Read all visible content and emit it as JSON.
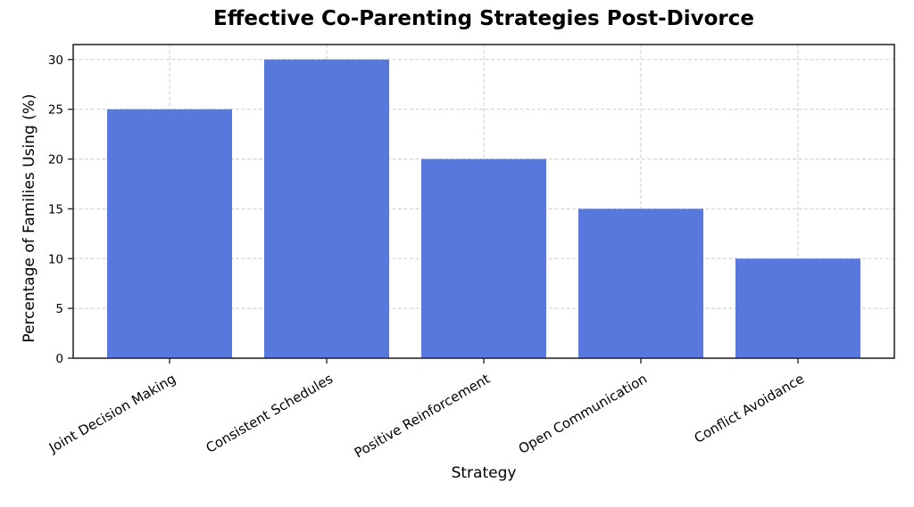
{
  "figure": {
    "background": "#ffffff",
    "text_color": "#000000",
    "spine_color": "#2b2b2b"
  },
  "chart_data": {
    "type": "bar",
    "title": "Effective Co-Parenting Strategies Post-Divorce",
    "xlabel": "Strategy",
    "ylabel": "Percentage of Families Using (%)",
    "categories": [
      "Joint Decision Making",
      "Consistent Schedules",
      "Positive Reinforcement",
      "Open Communication",
      "Conflict Avoidance"
    ],
    "values": [
      25,
      30,
      20,
      15,
      10
    ],
    "yticks": [
      0,
      5,
      10,
      15,
      20,
      25,
      30
    ],
    "ylim": [
      0,
      31.5
    ],
    "bar_color": "#5878de",
    "grid": true,
    "grid_color": "#cdcdcd",
    "grid_style": "dashed",
    "legend_position": "none",
    "x_tick_rotation_deg": 30
  }
}
